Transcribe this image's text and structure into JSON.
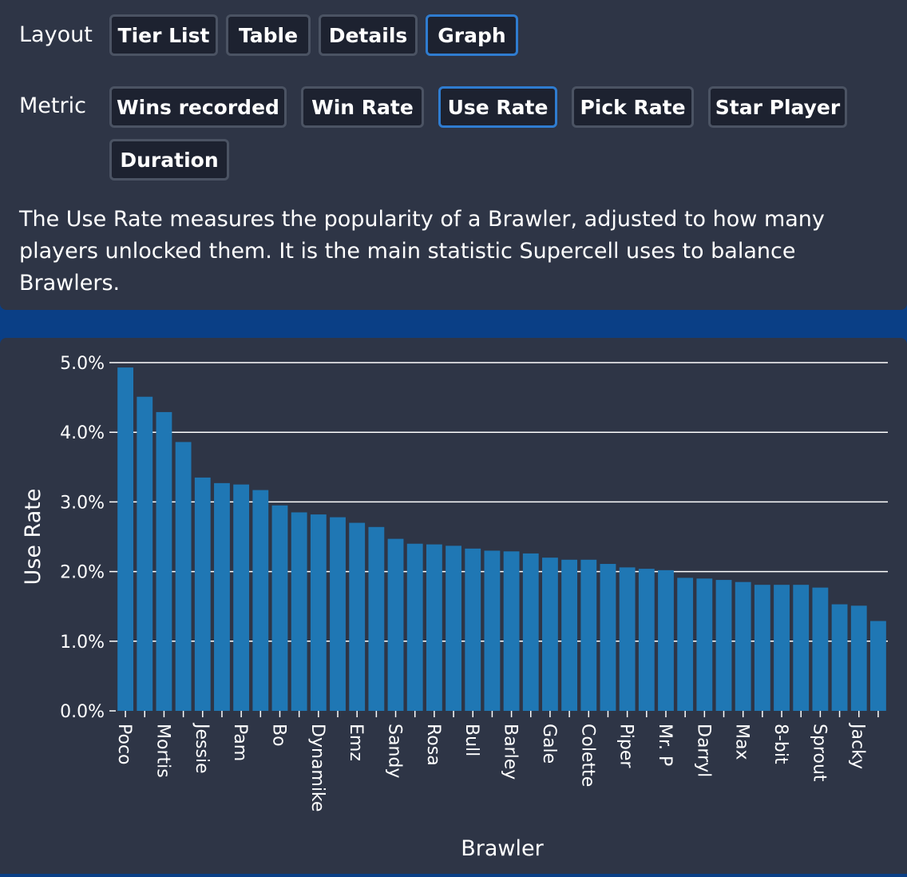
{
  "controls": {
    "layout_label": "Layout",
    "layout_options": [
      "Tier List",
      "Table",
      "Details",
      "Graph"
    ],
    "layout_selected": "Graph",
    "metric_label": "Metric",
    "metric_options": [
      "Wins recorded",
      "Win Rate",
      "Use Rate",
      "Pick Rate",
      "Star Player",
      "Duration"
    ],
    "metric_selected": "Use Rate"
  },
  "description": "The Use Rate measures the popularity of a Brawler, adjusted to how many players unlocked them. It is the main statistic Supercell uses to balance Brawlers.",
  "chart_data": {
    "type": "bar",
    "title": "",
    "xlabel": "Brawler",
    "ylabel": "Use Rate",
    "ylim": [
      0,
      5
    ],
    "yticks": [
      "0.0%",
      "1.0%",
      "2.0%",
      "3.0%",
      "4.0%",
      "5.0%"
    ],
    "grid": "horizontal",
    "bar_color": "#1f77b4",
    "categories": [
      "Poco",
      "",
      "Mortis",
      "",
      "Jessie",
      "",
      "Pam",
      "",
      "Bo",
      "",
      "Dynamike",
      "",
      "Emz",
      "",
      "Sandy",
      "",
      "Rosa",
      "",
      "Bull",
      "",
      "Barley",
      "",
      "Gale",
      "",
      "Colette",
      "",
      "Piper",
      "",
      "Mr. P",
      "",
      "Darryl",
      "",
      "Max",
      "",
      "8-bit",
      "",
      "Sprout",
      "",
      "Jacky",
      ""
    ],
    "values": [
      4.93,
      4.51,
      4.29,
      3.86,
      3.35,
      3.27,
      3.25,
      3.17,
      2.95,
      2.85,
      2.82,
      2.78,
      2.7,
      2.64,
      2.47,
      2.4,
      2.39,
      2.37,
      2.33,
      2.3,
      2.29,
      2.26,
      2.2,
      2.17,
      2.17,
      2.11,
      2.06,
      2.04,
      2.02,
      1.91,
      1.9,
      1.88,
      1.85,
      1.81,
      1.81,
      1.81,
      1.77,
      1.53,
      1.51,
      1.29
    ]
  }
}
